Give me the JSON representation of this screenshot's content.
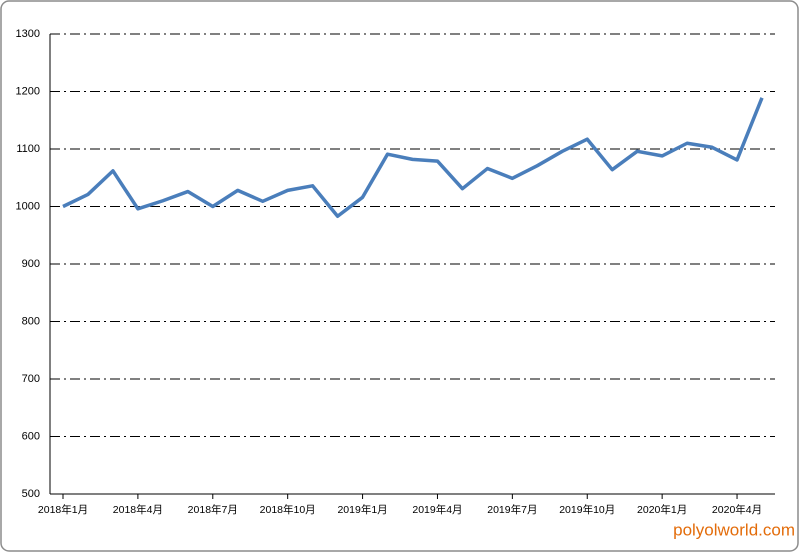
{
  "chart_data": {
    "type": "line",
    "categories": [
      "2018年1月",
      null,
      null,
      "2018年4月",
      null,
      null,
      "2018年7月",
      null,
      null,
      "2018年10月",
      null,
      null,
      "2019年1月",
      null,
      null,
      "2019年4月",
      null,
      null,
      "2019年7月",
      null,
      null,
      "2019年10月",
      null,
      null,
      "2020年1月",
      null,
      null,
      "2020年4月",
      null
    ],
    "series": [
      {
        "color": "#4a7ebb",
        "values": [
          1000,
          1021,
          1062,
          996,
          1010,
          1026,
          1000,
          1028,
          1009,
          1028,
          1036,
          983,
          1016,
          1091,
          1082,
          1079,
          1031,
          1066,
          1049,
          1071,
          1096,
          1117,
          1064,
          1096,
          1088,
          1110,
          1103,
          1081,
          1189
        ]
      }
    ],
    "ylim": [
      500,
      1300
    ],
    "yticks": [
      500,
      600,
      700,
      800,
      900,
      1000,
      1100,
      1200,
      1300
    ],
    "grid": true,
    "watermark": "polyolworld.com"
  }
}
